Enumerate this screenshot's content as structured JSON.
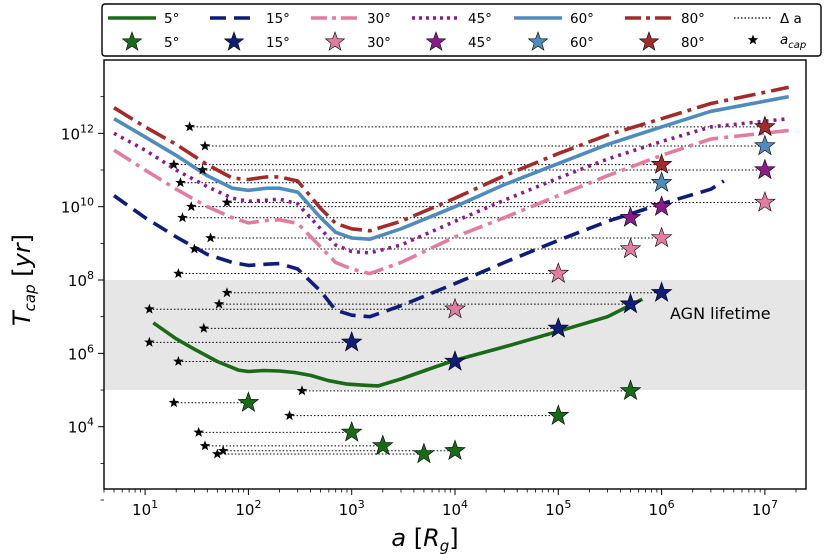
{
  "chart_data": {
    "type": "line",
    "xlabel_main": "a",
    "xlabel_unit": "R",
    "xlabel_sub": "g",
    "ylabel_main": "T",
    "ylabel_sub": "cap",
    "ylabel_unit": "yr",
    "x_scale": "log",
    "y_scale": "log",
    "xlim": [
      4,
      25000000
    ],
    "ylim": [
      200,
      100000000000000
    ],
    "x_tick_exponents": [
      1,
      2,
      3,
      4,
      5,
      6,
      7
    ],
    "y_tick_exponents": [
      4,
      6,
      8,
      10,
      12
    ],
    "tick_base": "10",
    "band": {
      "label": "AGN lifetime",
      "ymin": 100000,
      "ymax": 100000000,
      "color": "#e6e6e6"
    },
    "legend": {
      "line_entries": [
        {
          "label": "5°",
          "color": "#1a6b17",
          "style": "solid"
        },
        {
          "label": "15°",
          "color": "#0f1c78",
          "style": "dashed"
        },
        {
          "label": "30°",
          "color": "#e27ca0",
          "style": "dashdot"
        },
        {
          "label": "45°",
          "color": "#8b1a8b",
          "style": "dotted"
        },
        {
          "label": "60°",
          "color": "#4f8bbd",
          "style": "solid"
        },
        {
          "label": "80°",
          "color": "#a32b2b",
          "style": "dashdot"
        },
        {
          "label": "Δ a",
          "color": "#000000",
          "style": "dotted"
        }
      ],
      "star_entries": [
        {
          "label": "5°",
          "color": "#1a6b17"
        },
        {
          "label": "15°",
          "color": "#0f1c78"
        },
        {
          "label": "30°",
          "color": "#e27ca0"
        },
        {
          "label": "45°",
          "color": "#8b1a8b"
        },
        {
          "label": "60°",
          "color": "#4f8bbd"
        },
        {
          "label": "80°",
          "color": "#a32b2b"
        }
      ],
      "small_star_label_main": "a",
      "small_star_label_sub": "cap"
    },
    "series": [
      {
        "name": "5°",
        "color": "#1a6b17",
        "dash": "",
        "points": [
          [
            12,
            6800000
          ],
          [
            20,
            2500000
          ],
          [
            30,
            1300000
          ],
          [
            50,
            600000
          ],
          [
            80,
            350000
          ],
          [
            100,
            320000
          ],
          [
            140,
            340000
          ],
          [
            200,
            330000
          ],
          [
            280,
            300000
          ],
          [
            400,
            250000
          ],
          [
            600,
            180000
          ],
          [
            900,
            145000
          ],
          [
            1300,
            135000
          ],
          [
            1800,
            130000
          ],
          [
            3000,
            200000
          ],
          [
            6000,
            400000
          ],
          [
            10000,
            650000
          ],
          [
            30000,
            1500000
          ],
          [
            100000,
            4000000
          ],
          [
            300000,
            10000000
          ],
          [
            650000,
            30000000
          ]
        ]
      },
      {
        "name": "15°",
        "color": "#0f1c78",
        "dash": "16 8",
        "points": [
          [
            5,
            20000000000
          ],
          [
            10,
            5000000000
          ],
          [
            20,
            1500000000
          ],
          [
            40,
            500000000
          ],
          [
            70,
            300000000
          ],
          [
            100,
            250000000
          ],
          [
            150,
            270000000
          ],
          [
            200,
            280000000
          ],
          [
            300,
            200000000
          ],
          [
            500,
            50000000
          ],
          [
            700,
            15000000
          ],
          [
            1000,
            11000000
          ],
          [
            1500,
            10000000
          ],
          [
            3000,
            20000000
          ],
          [
            10000,
            80000000
          ],
          [
            30000,
            300000000
          ],
          [
            100000,
            1200000000
          ],
          [
            300000,
            4000000000
          ],
          [
            1000000,
            12000000000
          ],
          [
            3000000,
            30000000000
          ],
          [
            4000000,
            50000000000
          ]
        ]
      },
      {
        "name": "30°",
        "color": "#e27ca0",
        "dash": "20 6 4 6",
        "points": [
          [
            5,
            350000000000
          ],
          [
            10,
            100000000000
          ],
          [
            20,
            30000000000
          ],
          [
            40,
            10000000000
          ],
          [
            70,
            5000000000
          ],
          [
            100,
            3600000000
          ],
          [
            150,
            4200000000
          ],
          [
            200,
            4400000000
          ],
          [
            300,
            3500000000
          ],
          [
            500,
            800000000
          ],
          [
            700,
            300000000
          ],
          [
            1000,
            200000000
          ],
          [
            1500,
            150000000
          ],
          [
            3000,
            300000000
          ],
          [
            10000,
            1500000000
          ],
          [
            30000,
            5000000000
          ],
          [
            100000,
            20000000000
          ],
          [
            300000,
            70000000000
          ],
          [
            1000000,
            250000000000
          ],
          [
            3000000,
            700000000000
          ],
          [
            17000000,
            1200000000000
          ]
        ]
      },
      {
        "name": "45°",
        "color": "#8b1a8b",
        "dash": "3 5",
        "points": [
          [
            5,
            1000000000000
          ],
          [
            10,
            350000000000
          ],
          [
            20,
            100000000000
          ],
          [
            40,
            35000000000
          ],
          [
            70,
            17000000000
          ],
          [
            100,
            14000000000
          ],
          [
            150,
            15000000000
          ],
          [
            200,
            16000000000
          ],
          [
            300,
            12000000000
          ],
          [
            500,
            2500000000
          ],
          [
            700,
            900000000
          ],
          [
            1000,
            600000000
          ],
          [
            1500,
            550000000
          ],
          [
            3000,
            900000000
          ],
          [
            10000,
            4000000000
          ],
          [
            30000,
            15000000000
          ],
          [
            100000,
            60000000000
          ],
          [
            300000,
            200000000000
          ],
          [
            1000000,
            600000000000
          ],
          [
            3000000,
            1500000000000
          ],
          [
            17000000,
            2500000000000
          ]
        ]
      },
      {
        "name": "60°",
        "color": "#4f8bbd",
        "dash": "",
        "points": [
          [
            5,
            2500000000000
          ],
          [
            10,
            800000000000
          ],
          [
            20,
            250000000000
          ],
          [
            40,
            70000000000
          ],
          [
            70,
            32000000000
          ],
          [
            100,
            28000000000
          ],
          [
            150,
            32000000000
          ],
          [
            200,
            32000000000
          ],
          [
            300,
            25000000000
          ],
          [
            500,
            5000000000
          ],
          [
            700,
            2000000000
          ],
          [
            1000,
            1400000000
          ],
          [
            1500,
            1300000000
          ],
          [
            3000,
            2500000000
          ],
          [
            10000,
            10000000000
          ],
          [
            30000,
            40000000000
          ],
          [
            100000,
            150000000000
          ],
          [
            300000,
            500000000000
          ],
          [
            1000000,
            1500000000000
          ],
          [
            3000000,
            4000000000000
          ],
          [
            17000000,
            10000000000000
          ]
        ]
      },
      {
        "name": "80°",
        "color": "#a32b2b",
        "dash": "22 6 4 6",
        "points": [
          [
            5,
            5000000000000
          ],
          [
            10,
            1500000000000
          ],
          [
            20,
            500000000000
          ],
          [
            40,
            140000000000
          ],
          [
            70,
            60000000000
          ],
          [
            100,
            55000000000
          ],
          [
            150,
            65000000000
          ],
          [
            200,
            65000000000
          ],
          [
            300,
            50000000000
          ],
          [
            500,
            9000000000
          ],
          [
            700,
            3500000000
          ],
          [
            1000,
            2500000000
          ],
          [
            1500,
            2200000000
          ],
          [
            3000,
            4000000000
          ],
          [
            10000,
            17000000000
          ],
          [
            30000,
            70000000000
          ],
          [
            100000,
            280000000000
          ],
          [
            300000,
            900000000000
          ],
          [
            1000000,
            2500000000000
          ],
          [
            3000000,
            6500000000000
          ],
          [
            17000000,
            18000000000000
          ]
        ]
      }
    ],
    "capture_stars": [
      {
        "color": "#1a6b17",
        "x": 100,
        "y": 45000
      },
      {
        "color": "#1a6b17",
        "x": 1000,
        "y": 7000
      },
      {
        "color": "#1a6b17",
        "x": 2000,
        "y": 3000
      },
      {
        "color": "#1a6b17",
        "x": 5000,
        "y": 1800
      },
      {
        "color": "#1a6b17",
        "x": 10000,
        "y": 2200
      },
      {
        "color": "#1a6b17",
        "x": 100000,
        "y": 20000
      },
      {
        "color": "#1a6b17",
        "x": 500000,
        "y": 95000
      },
      {
        "color": "#0f1c78",
        "x": 1000,
        "y": 2000000
      },
      {
        "color": "#0f1c78",
        "x": 10000,
        "y": 600000
      },
      {
        "color": "#0f1c78",
        "x": 100000,
        "y": 4800000
      },
      {
        "color": "#0f1c78",
        "x": 500000,
        "y": 22000000
      },
      {
        "color": "#0f1c78",
        "x": 1000000,
        "y": 45000000
      },
      {
        "color": "#e27ca0",
        "x": 10000,
        "y": 16000000
      },
      {
        "color": "#e27ca0",
        "x": 100000,
        "y": 150000000
      },
      {
        "color": "#e27ca0",
        "x": 500000,
        "y": 700000000
      },
      {
        "color": "#e27ca0",
        "x": 1000000,
        "y": 1400000000
      },
      {
        "color": "#e27ca0",
        "x": 10000000,
        "y": 13000000000
      },
      {
        "color": "#8b1a8b",
        "x": 500000,
        "y": 5000000000
      },
      {
        "color": "#8b1a8b",
        "x": 1000000,
        "y": 10000000000
      },
      {
        "color": "#8b1a8b",
        "x": 10000000,
        "y": 100000000000
      },
      {
        "color": "#4f8bbd",
        "x": 1000000,
        "y": 45000000000
      },
      {
        "color": "#4f8bbd",
        "x": 10000000,
        "y": 450000000000
      },
      {
        "color": "#a32b2b",
        "x": 1000000,
        "y": 140000000000
      },
      {
        "color": "#a32b2b",
        "x": 10000000,
        "y": 1500000000000
      }
    ],
    "acap_stars": [
      {
        "x": 19,
        "y": 45000,
        "x_end": 100
      },
      {
        "x": 33,
        "y": 7000,
        "x_end": 1000
      },
      {
        "x": 38,
        "y": 3000,
        "x_end": 2000
      },
      {
        "x": 50,
        "y": 1800,
        "x_end": 5000
      },
      {
        "x": 57,
        "y": 2200,
        "x_end": 10000
      },
      {
        "x": 250,
        "y": 20000,
        "x_end": 100000
      },
      {
        "x": 330,
        "y": 95000,
        "x_end": 500000
      },
      {
        "x": 11,
        "y": 2000000,
        "x_end": 1000
      },
      {
        "x": 21,
        "y": 600000,
        "x_end": 10000
      },
      {
        "x": 37,
        "y": 4800000,
        "x_end": 100000
      },
      {
        "x": 52,
        "y": 22000000,
        "x_end": 500000
      },
      {
        "x": 62,
        "y": 45000000,
        "x_end": 1000000
      },
      {
        "x": 11,
        "y": 16000000,
        "x_end": 10000
      },
      {
        "x": 21,
        "y": 150000000,
        "x_end": 100000
      },
      {
        "x": 30,
        "y": 700000000,
        "x_end": 500000
      },
      {
        "x": 23,
        "y": 5000000000,
        "x_end": 500000
      },
      {
        "x": 28,
        "y": 10000000000,
        "x_end": 1000000
      },
      {
        "x": 36,
        "y": 100000000000,
        "x_end": 10000000
      },
      {
        "x": 62,
        "y": 13000000000,
        "x_end": 10000000
      },
      {
        "x": 43,
        "y": 1400000000,
        "x_end": 1000000
      },
      {
        "x": 22,
        "y": 45000000000,
        "x_end": 1000000
      },
      {
        "x": 38,
        "y": 450000000000,
        "x_end": 10000000
      },
      {
        "x": 19,
        "y": 140000000000,
        "x_end": 1000000
      },
      {
        "x": 27,
        "y": 1500000000000,
        "x_end": 10000000
      }
    ]
  }
}
